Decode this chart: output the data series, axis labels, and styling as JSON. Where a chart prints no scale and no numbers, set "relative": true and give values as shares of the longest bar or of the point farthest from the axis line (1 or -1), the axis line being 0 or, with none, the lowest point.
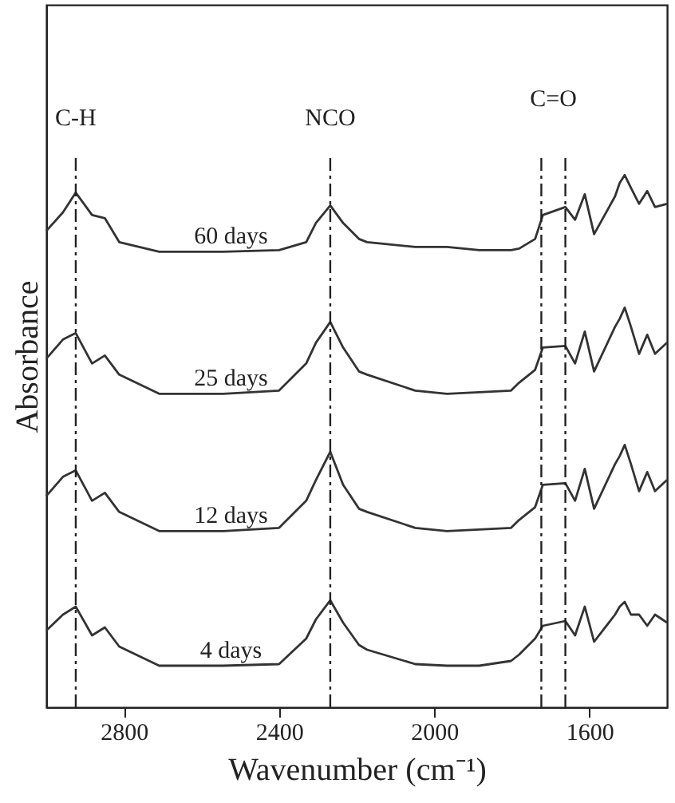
{
  "chart_data": {
    "type": "line",
    "xlabel": "Wavenumber (cm⁻¹)",
    "ylabel": "Absorbance",
    "relative": true,
    "xlim": [
      3000,
      1400
    ],
    "xticks": [
      2800,
      2400,
      2000,
      1600
    ],
    "x": [
      3000,
      2957,
      2924,
      2882,
      2849,
      2812,
      2709,
      2544,
      2400,
      2330,
      2305,
      2268,
      2235,
      2194,
      2173,
      2049,
      1967,
      1884,
      1802,
      1781,
      1740,
      1720,
      1662,
      1637,
      1612,
      1588,
      1534,
      1522,
      1509,
      1493,
      1472,
      1451,
      1431,
      1400
    ],
    "series": [
      {
        "name": "60 days",
        "color": "#333333",
        "values": [
          0.895,
          0.93,
          0.967,
          0.925,
          0.919,
          0.874,
          0.856,
          0.856,
          0.859,
          0.874,
          0.91,
          0.943,
          0.91,
          0.88,
          0.874,
          0.865,
          0.865,
          0.859,
          0.859,
          0.862,
          0.88,
          0.925,
          0.94,
          0.916,
          0.964,
          0.889,
          0.96,
          0.985,
          1.0,
          0.976,
          0.946,
          0.97,
          0.94,
          0.946
        ]
      },
      {
        "name": "25 days",
        "color": "#333333",
        "values": [
          0.655,
          0.691,
          0.703,
          0.646,
          0.661,
          0.625,
          0.589,
          0.589,
          0.595,
          0.646,
          0.685,
          0.724,
          0.676,
          0.631,
          0.625,
          0.595,
          0.589,
          0.592,
          0.595,
          0.61,
          0.634,
          0.676,
          0.679,
          0.646,
          0.706,
          0.631,
          0.715,
          0.73,
          0.751,
          0.715,
          0.664,
          0.7,
          0.664,
          0.685
        ]
      },
      {
        "name": "12 days",
        "color": "#333333",
        "values": [
          0.397,
          0.433,
          0.445,
          0.388,
          0.403,
          0.367,
          0.331,
          0.331,
          0.337,
          0.388,
          0.427,
          0.48,
          0.418,
          0.373,
          0.367,
          0.337,
          0.331,
          0.334,
          0.337,
          0.352,
          0.376,
          0.418,
          0.421,
          0.388,
          0.448,
          0.373,
          0.457,
          0.472,
          0.493,
          0.457,
          0.406,
          0.442,
          0.406,
          0.427
        ]
      },
      {
        "name": "4 days",
        "color": "#333333",
        "values": [
          0.144,
          0.174,
          0.189,
          0.135,
          0.15,
          0.114,
          0.078,
          0.078,
          0.081,
          0.129,
          0.165,
          0.201,
          0.159,
          0.117,
          0.108,
          0.081,
          0.078,
          0.078,
          0.087,
          0.099,
          0.129,
          0.153,
          0.162,
          0.135,
          0.189,
          0.123,
          0.174,
          0.189,
          0.198,
          0.174,
          0.174,
          0.153,
          0.174,
          0.159
        ]
      }
    ],
    "ref_lines": [
      {
        "axis": "x",
        "value": 2924,
        "label": "C-H",
        "line_style": "dashed",
        "color": "#222222"
      },
      {
        "axis": "x",
        "value": 2268,
        "label": "NCO",
        "line_style": "dashed",
        "color": "#222222"
      },
      {
        "axis": "x",
        "value": 1724,
        "label": null,
        "line_style": "dashed",
        "color": "#222222"
      },
      {
        "axis": "x",
        "value": 1662,
        "label": null,
        "line_style": "dashed",
        "color": "#222222"
      }
    ],
    "annotations": [
      "C=O"
    ]
  }
}
